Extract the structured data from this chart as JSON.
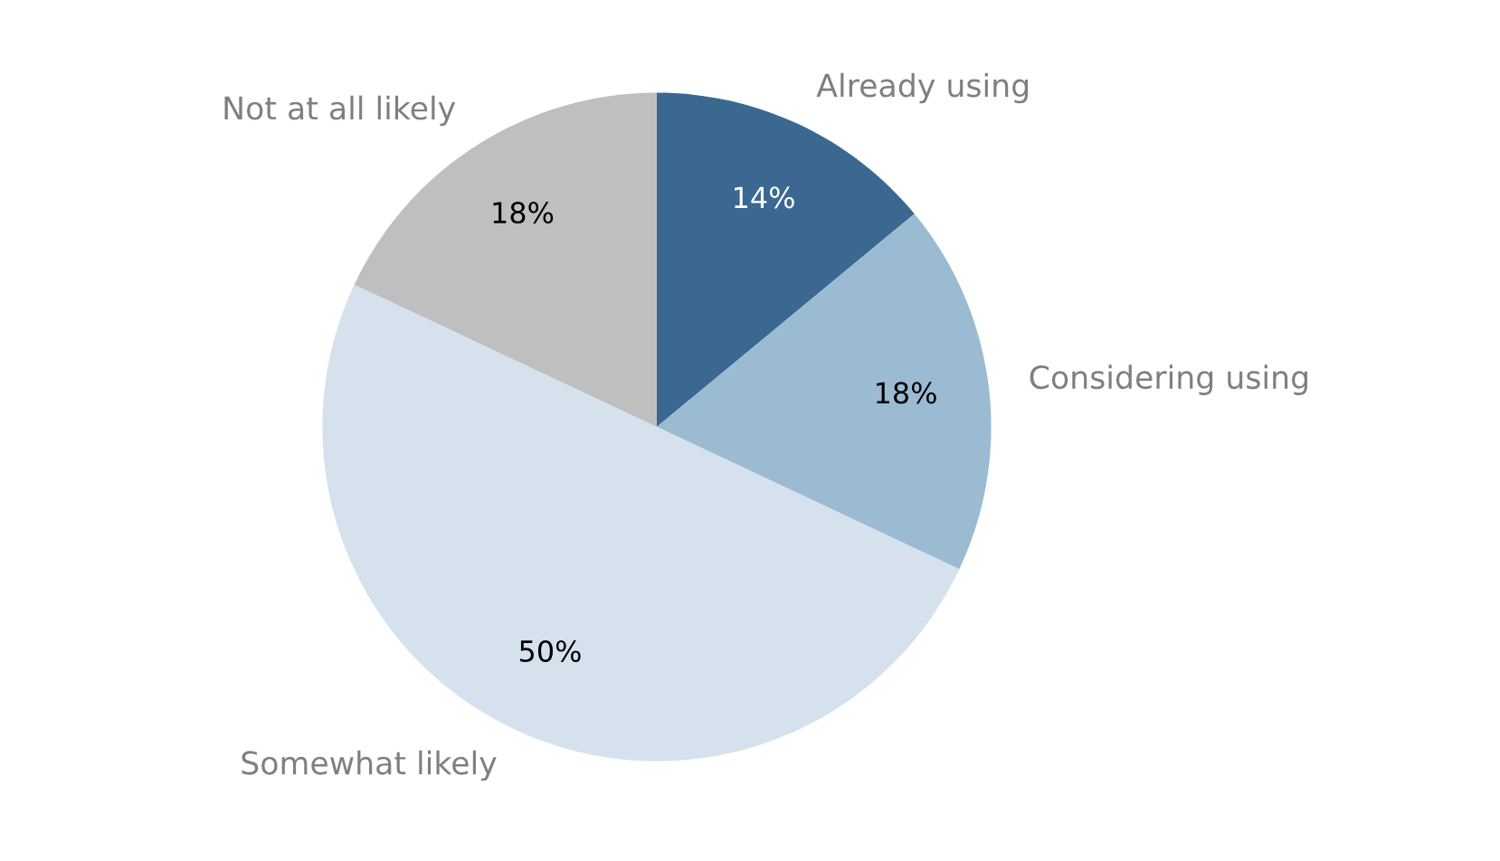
{
  "chart_data": {
    "type": "pie",
    "categories": [
      "Already using",
      "Considering using",
      "Somewhat likely",
      "Not at all likely"
    ],
    "values": [
      14,
      18,
      50,
      18
    ],
    "value_labels": [
      "14%",
      "18%",
      "50%",
      "18%"
    ],
    "colors": [
      "#3a6891",
      "#9bbbd3",
      "#d5e2ee",
      "#bfbfbf"
    ],
    "legend": false
  }
}
